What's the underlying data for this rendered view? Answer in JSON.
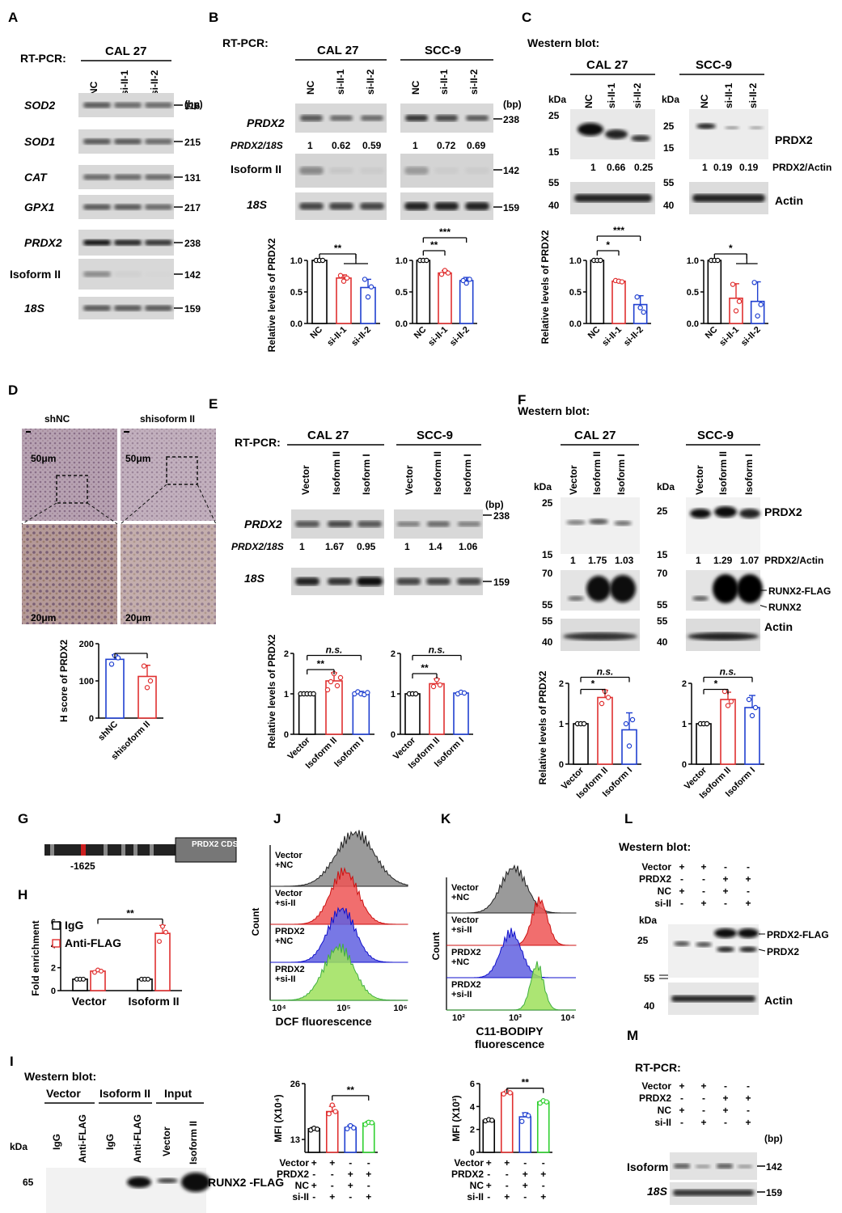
{
  "panels": {
    "A": "A",
    "B": "B",
    "C": "C",
    "D": "D",
    "E": "E",
    "F": "F",
    "G": "G",
    "H": "H",
    "I": "I",
    "J": "J",
    "K": "K",
    "L": "L",
    "M": "M"
  },
  "common": {
    "rtpcr": "RT-PCR:",
    "western": "Western blot:",
    "western_L": "Western  blot:",
    "cal27": "CAL 27",
    "scc9": "SCC-9",
    "bp": "(bp)",
    "kda": "kDa",
    "ns": "n.s.",
    "ratio_prdx2_18s": "PRDX2/18S",
    "ratio_prdx2_actin": "PRDX2/Actin",
    "rel_prdx2": "Relative levels of PRDX2"
  },
  "panel_A": {
    "lanes": [
      "NC",
      "si-II-1",
      "si-II-2"
    ],
    "genes": [
      "SOD2",
      "SOD1",
      "CAT",
      "GPX1",
      "PRDX2",
      "Isoform II",
      "18S"
    ],
    "sizes": [
      "116",
      "215",
      "131",
      "217",
      "238",
      "142",
      "159"
    ]
  },
  "panel_B": {
    "lanes": [
      "NC",
      "si-II-1",
      "si-II-2"
    ],
    "ratios_cal27": [
      "1",
      "0.62",
      "0.59"
    ],
    "ratios_scc9": [
      "1",
      "0.72",
      "0.69"
    ],
    "rows": [
      "PRDX2",
      "Isoform II",
      "18S"
    ],
    "sizes": [
      "238",
      "142",
      "159"
    ],
    "chart_cal27": {
      "type": "bar",
      "categories": [
        "NC",
        "si-II-1",
        "si-II-2"
      ],
      "values": [
        1.0,
        0.72,
        0.57
      ],
      "ylim": [
        0,
        1.0
      ],
      "sig": "**"
    },
    "chart_scc9": {
      "type": "bar",
      "categories": [
        "NC",
        "si-II-1",
        "si-II-2"
      ],
      "values": [
        1.0,
        0.8,
        0.68
      ],
      "ylim": [
        0,
        1.0
      ],
      "sig": [
        "**",
        "***"
      ]
    }
  },
  "panel_C": {
    "lanes": [
      "NC",
      "si-II-1",
      "si-II-2"
    ],
    "ratios_cal27": [
      "1",
      "0.66",
      "0.25"
    ],
    "ratios_scc9": [
      "1",
      "0.19",
      "0.19"
    ],
    "markers_top": [
      "25",
      "15"
    ],
    "markers_bot": [
      "55",
      "40"
    ],
    "proteins": [
      "PRDX2",
      "Actin"
    ],
    "chart_cal27": {
      "type": "bar",
      "categories": [
        "NC",
        "si-II-1",
        "si-II-2"
      ],
      "values": [
        1.0,
        0.67,
        0.3
      ],
      "sig": [
        "*",
        "***"
      ]
    },
    "chart_scc9": {
      "type": "bar",
      "categories": [
        "NC",
        "si-II-1",
        "si-II-2"
      ],
      "values": [
        1.0,
        0.4,
        0.35
      ],
      "sig": "*"
    }
  },
  "panel_D": {
    "labels": [
      "shNC",
      "shisoform II"
    ],
    "scale_top": "50μm",
    "scale_bot": "20μm",
    "ylabel": "H score of PRDX2",
    "chart": {
      "type": "bar",
      "categories": [
        "shNC",
        "shisoform II"
      ],
      "values": [
        158,
        112
      ],
      "ylim": [
        0,
        200
      ]
    }
  },
  "panel_E": {
    "lanes": [
      "Vector",
      "Isoform II",
      "Isoform I"
    ],
    "ratios_cal27": [
      "1",
      "1.67",
      "0.95"
    ],
    "ratios_scc9": [
      "1",
      "1.4",
      "1.06"
    ],
    "rows": [
      "PRDX2",
      "18S"
    ],
    "sizes": [
      "238",
      "159"
    ],
    "chart_cal27": {
      "type": "bar",
      "categories": [
        "Vector",
        "Isoform II",
        "Isoform I"
      ],
      "values": [
        1.0,
        1.32,
        1.02
      ],
      "ylim": [
        0,
        2
      ],
      "sig": [
        "**",
        "n.s."
      ]
    },
    "chart_scc9": {
      "type": "bar",
      "categories": [
        "Vector",
        "Isoform II",
        "Isoform I"
      ],
      "values": [
        1.0,
        1.25,
        1.02
      ],
      "ylim": [
        0,
        2
      ],
      "sig": [
        "**",
        "n.s."
      ]
    }
  },
  "panel_F": {
    "lanes": [
      "Vector",
      "Isoform II",
      "Isoform I"
    ],
    "ratios_cal27": [
      "1",
      "1.75",
      "1.03"
    ],
    "ratios_scc9": [
      "1",
      "1.29",
      "1.07"
    ],
    "proteins": [
      "PRDX2",
      "RUNX2-FLAG",
      "RUNX2",
      "Actin"
    ],
    "markers": [
      "25",
      "15",
      "70",
      "55",
      "55",
      "40"
    ],
    "chart_cal27": {
      "type": "bar",
      "categories": [
        "Vector",
        "Isoform II",
        "Isoform I"
      ],
      "values": [
        1.0,
        1.65,
        0.85
      ],
      "ylim": [
        0,
        2
      ],
      "sig": [
        "*",
        "n.s."
      ]
    },
    "chart_scc9": {
      "type": "bar",
      "categories": [
        "Vector",
        "Isoform II",
        "Isoform I"
      ],
      "values": [
        1.0,
        1.6,
        1.4
      ],
      "ylim": [
        0,
        2
      ],
      "sig": [
        "*",
        "n.s."
      ]
    }
  },
  "panel_G": {
    "position": "-1625",
    "cds": "PRDX2 CDS"
  },
  "panel_H": {
    "legend": [
      "IgG",
      "Anti-FLAG"
    ],
    "ylabel": "Fold enrichment",
    "chart": {
      "type": "bar",
      "categories": [
        "Vector",
        "Isoform II"
      ],
      "series": [
        {
          "name": "IgG",
          "values": [
            1.0,
            1.0
          ]
        },
        {
          "name": "Anti-FLAG",
          "values": [
            1.7,
            5.0
          ]
        }
      ],
      "ylim": [
        0,
        6
      ],
      "sig": "**"
    }
  },
  "panel_I": {
    "groups": [
      "Vector",
      "Isoform II",
      "Input"
    ],
    "lanes": [
      "IgG",
      "Anti-FLAG",
      "IgG",
      "Anti-FLAG",
      "Vector",
      "Isoform II"
    ],
    "marker": "65",
    "protein": "RUNX2 -FLAG"
  },
  "panel_J": {
    "samples": [
      "Vector +NC",
      "Vector +si-II",
      "PRDX2 +NC",
      "PRDX2 +si-II"
    ],
    "ylabel": "Count",
    "xlabel": "DCF fluorescence",
    "ticks": [
      "10⁴",
      "10⁵",
      "10⁶"
    ],
    "mfi_label": "MFI (X10⁴)",
    "chart": {
      "type": "bar",
      "categories": [
        "Vector+NC",
        "Vector+si-II",
        "PRDX2+NC",
        "PRDX2+si-II"
      ],
      "values": [
        15.5,
        19.5,
        15.8,
        16.8
      ],
      "ylim": [
        10,
        26
      ],
      "sig": "**"
    }
  },
  "panel_K": {
    "samples": [
      "Vector +NC",
      "Vector +si-II",
      "PRDX2 +NC",
      "PRDX2 +si-II"
    ],
    "ylabel": "Count",
    "xlabel": "C11-BODIPY fluorescence",
    "ticks": [
      "10²",
      "10³",
      "10⁴"
    ],
    "mfi_label": "MFI (X10³)",
    "chart": {
      "type": "bar",
      "categories": [
        "Vector+NC",
        "Vector+si-II",
        "PRDX2+NC",
        "PRDX2+si-II"
      ],
      "values": [
        2.8,
        5.2,
        3.1,
        4.4
      ],
      "ylim": [
        0,
        6
      ],
      "sig": "**"
    }
  },
  "treatment_rows": [
    {
      "label": "Vector",
      "signs": [
        "+",
        "+",
        "-",
        "-"
      ]
    },
    {
      "label": "PRDX2",
      "signs": [
        "-",
        "-",
        "+",
        "+"
      ]
    },
    {
      "label": "NC",
      "signs": [
        "+",
        "-",
        "+",
        "-"
      ]
    },
    {
      "label": "si-II",
      "signs": [
        "-",
        "+",
        "-",
        "+"
      ]
    }
  ],
  "panel_L": {
    "proteins": [
      "PRDX2-FLAG",
      "PRDX2",
      "Actin"
    ],
    "markers": [
      "25",
      "55",
      "40"
    ]
  },
  "panel_M": {
    "rows": [
      "Isoform II",
      "18S"
    ],
    "sizes": [
      "142",
      "159"
    ]
  }
}
